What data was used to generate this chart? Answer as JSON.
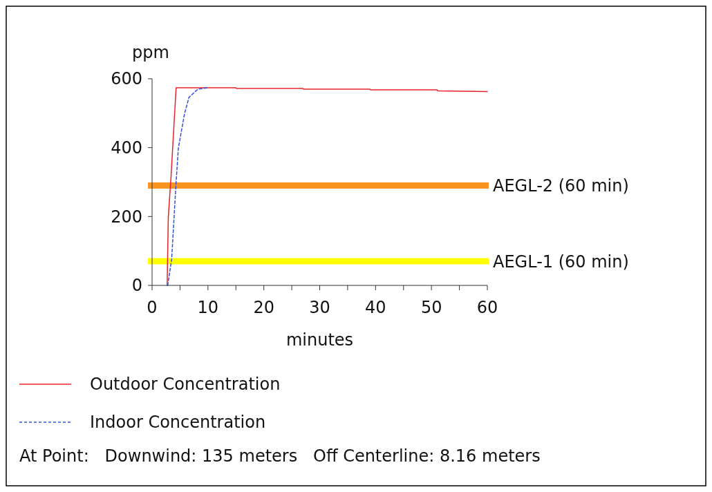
{
  "chart_data": {
    "type": "line",
    "ylabel": "ppm",
    "xlabel": "minutes",
    "xlim": [
      0,
      60
    ],
    "ylim": [
      0,
      600
    ],
    "xticks": [
      0,
      {
        "value": 5,
        "label": null
      },
      10,
      {
        "value": 15,
        "label": null
      },
      20,
      {
        "value": 25,
        "label": null
      },
      30,
      {
        "value": 35,
        "label": null
      },
      40,
      {
        "value": 45,
        "label": null
      },
      50,
      {
        "value": 55,
        "label": null
      },
      60
    ],
    "yticks": [
      0,
      200,
      400,
      600
    ],
    "grid": false,
    "legend": "bottom",
    "series": [
      {
        "name": "Outdoor Concentration",
        "color": "#e8202a",
        "line_style": "solid",
        "x": [
          2.7,
          2.9,
          3.4,
          4.3,
          15,
          15.1,
          27,
          27.1,
          39,
          39.1,
          51,
          51.1,
          60
        ],
        "values": [
          0,
          197,
          318,
          574,
          574,
          572,
          572,
          570,
          570,
          568,
          568,
          565,
          563
        ]
      },
      {
        "name": "Indoor Concentration",
        "color": "#3050e0",
        "line_style": "dashed",
        "x": [
          2.8,
          3.5,
          4.3,
          4.7,
          5.8,
          6.6,
          8.2,
          10
        ],
        "values": [
          0,
          75,
          300,
          398,
          498,
          546,
          570,
          574
        ]
      }
    ],
    "ref_lines": [
      {
        "axis": "y",
        "value": 290,
        "label": "AEGL-2 (60 min)",
        "color": "#f7931e"
      },
      {
        "axis": "y",
        "value": 70,
        "label": "AEGL-1 (60 min)",
        "color": "#ffff00"
      }
    ],
    "annotations": [
      "At Point:   Downwind: 135 meters   Off Centerline: 8.16 meters"
    ]
  }
}
